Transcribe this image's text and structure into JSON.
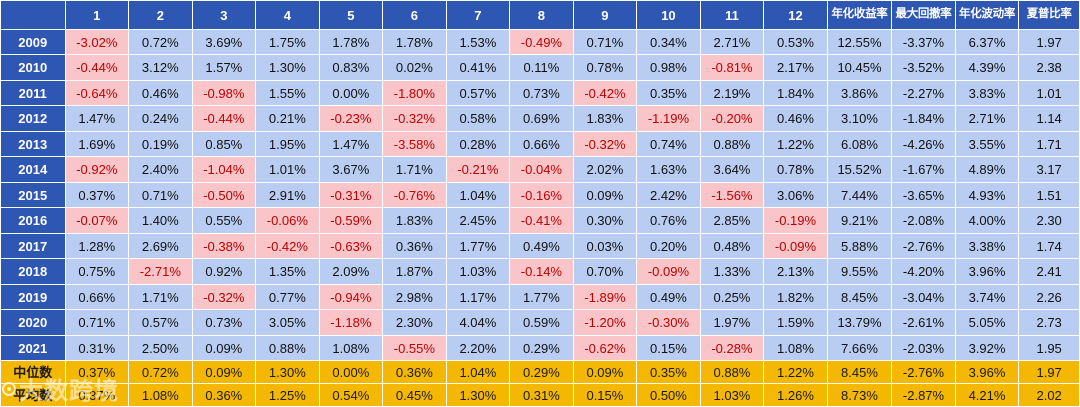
{
  "header": {
    "corner": "",
    "months": [
      "1",
      "2",
      "3",
      "4",
      "5",
      "6",
      "7",
      "8",
      "9",
      "10",
      "11",
      "12"
    ],
    "metrics": [
      "年化收益率",
      "最大回撤率",
      "年化波动率",
      "夏普比率"
    ]
  },
  "rows": [
    {
      "year": "2009",
      "months": [
        "-3.02%",
        "0.72%",
        "3.69%",
        "1.75%",
        "1.78%",
        "1.78%",
        "1.53%",
        "-0.49%",
        "0.71%",
        "0.34%",
        "2.71%",
        "0.53%"
      ],
      "metrics": [
        "12.55%",
        "-3.37%",
        "6.37%",
        "1.97"
      ]
    },
    {
      "year": "2010",
      "months": [
        "-0.44%",
        "3.12%",
        "1.57%",
        "1.30%",
        "0.83%",
        "0.02%",
        "0.41%",
        "0.11%",
        "0.78%",
        "0.98%",
        "-0.81%",
        "2.17%"
      ],
      "metrics": [
        "10.45%",
        "-3.52%",
        "4.39%",
        "2.38"
      ]
    },
    {
      "year": "2011",
      "months": [
        "-0.64%",
        "0.46%",
        "-0.98%",
        "1.55%",
        "0.00%",
        "-1.80%",
        "0.57%",
        "0.73%",
        "-0.42%",
        "0.35%",
        "2.19%",
        "1.84%"
      ],
      "metrics": [
        "3.86%",
        "-2.27%",
        "3.83%",
        "1.01"
      ]
    },
    {
      "year": "2012",
      "months": [
        "1.47%",
        "0.24%",
        "-0.44%",
        "0.21%",
        "-0.23%",
        "-0.32%",
        "0.58%",
        "0.69%",
        "1.83%",
        "-1.19%",
        "-0.20%",
        "0.46%"
      ],
      "metrics": [
        "3.10%",
        "-1.84%",
        "2.71%",
        "1.14"
      ]
    },
    {
      "year": "2013",
      "months": [
        "1.69%",
        "0.19%",
        "0.85%",
        "1.95%",
        "1.47%",
        "-3.58%",
        "0.28%",
        "0.66%",
        "-0.32%",
        "0.74%",
        "0.88%",
        "1.22%"
      ],
      "metrics": [
        "6.08%",
        "-4.26%",
        "3.55%",
        "1.71"
      ]
    },
    {
      "year": "2014",
      "months": [
        "-0.92%",
        "2.40%",
        "-1.04%",
        "1.01%",
        "3.67%",
        "1.71%",
        "-0.21%",
        "-0.04%",
        "2.02%",
        "1.63%",
        "3.64%",
        "0.78%"
      ],
      "metrics": [
        "15.52%",
        "-1.67%",
        "4.89%",
        "3.17"
      ]
    },
    {
      "year": "2015",
      "months": [
        "0.37%",
        "0.71%",
        "-0.50%",
        "2.91%",
        "-0.31%",
        "-0.76%",
        "1.04%",
        "-0.16%",
        "0.09%",
        "2.42%",
        "-1.56%",
        "3.06%"
      ],
      "metrics": [
        "7.44%",
        "-3.65%",
        "4.93%",
        "1.51"
      ]
    },
    {
      "year": "2016",
      "months": [
        "-0.07%",
        "1.40%",
        "0.55%",
        "-0.06%",
        "-0.59%",
        "1.83%",
        "2.45%",
        "-0.41%",
        "0.30%",
        "0.76%",
        "2.85%",
        "-0.19%"
      ],
      "metrics": [
        "9.21%",
        "-2.08%",
        "4.00%",
        "2.30"
      ]
    },
    {
      "year": "2017",
      "months": [
        "1.28%",
        "2.69%",
        "-0.38%",
        "-0.42%",
        "-0.63%",
        "0.36%",
        "1.77%",
        "0.49%",
        "0.03%",
        "0.20%",
        "0.48%",
        "-0.09%"
      ],
      "metrics": [
        "5.88%",
        "-2.76%",
        "3.38%",
        "1.74"
      ]
    },
    {
      "year": "2018",
      "months": [
        "0.75%",
        "-2.71%",
        "0.92%",
        "1.35%",
        "2.09%",
        "1.87%",
        "1.03%",
        "-0.14%",
        "0.70%",
        "-0.09%",
        "1.33%",
        "2.13%"
      ],
      "metrics": [
        "9.55%",
        "-4.20%",
        "3.96%",
        "2.41"
      ]
    },
    {
      "year": "2019",
      "months": [
        "0.66%",
        "1.71%",
        "-0.32%",
        "0.77%",
        "-0.94%",
        "2.98%",
        "1.17%",
        "1.77%",
        "-1.89%",
        "0.49%",
        "0.25%",
        "1.82%"
      ],
      "metrics": [
        "8.45%",
        "-3.04%",
        "3.74%",
        "2.26"
      ]
    },
    {
      "year": "2020",
      "months": [
        "0.71%",
        "0.57%",
        "0.73%",
        "3.05%",
        "-1.18%",
        "2.30%",
        "4.04%",
        "0.59%",
        "-1.20%",
        "-0.30%",
        "1.97%",
        "1.59%"
      ],
      "metrics": [
        "13.79%",
        "-2.61%",
        "5.05%",
        "2.73"
      ]
    },
    {
      "year": "2021",
      "months": [
        "0.31%",
        "2.50%",
        "0.09%",
        "0.88%",
        "1.08%",
        "-0.55%",
        "2.20%",
        "0.29%",
        "-0.62%",
        "0.15%",
        "-0.28%",
        "1.08%"
      ],
      "metrics": [
        "7.66%",
        "-2.03%",
        "3.92%",
        "1.95"
      ]
    }
  ],
  "summary": [
    {
      "label": "中位数",
      "months": [
        "0.37%",
        "0.72%",
        "0.09%",
        "1.30%",
        "0.00%",
        "0.36%",
        "1.04%",
        "0.29%",
        "0.09%",
        "0.35%",
        "0.88%",
        "1.22%"
      ],
      "metrics": [
        "8.45%",
        "-2.76%",
        "3.96%",
        "1.97"
      ]
    },
    {
      "label": "平均数",
      "months": [
        "0.37%",
        "1.08%",
        "0.36%",
        "1.25%",
        "0.54%",
        "0.45%",
        "1.30%",
        "0.31%",
        "0.15%",
        "0.50%",
        "1.03%",
        "1.26%"
      ],
      "metrics": [
        "8.73%",
        "-2.87%",
        "4.21%",
        "2.02"
      ]
    }
  ],
  "watermark": "大数跨境",
  "colors": {
    "header_bg": "#2e56b3",
    "cell_bg": "#b8cdf1",
    "negative_bg": "#f9c5c9",
    "negative_text": "#c00000",
    "summary_bg": "#f5b800"
  }
}
